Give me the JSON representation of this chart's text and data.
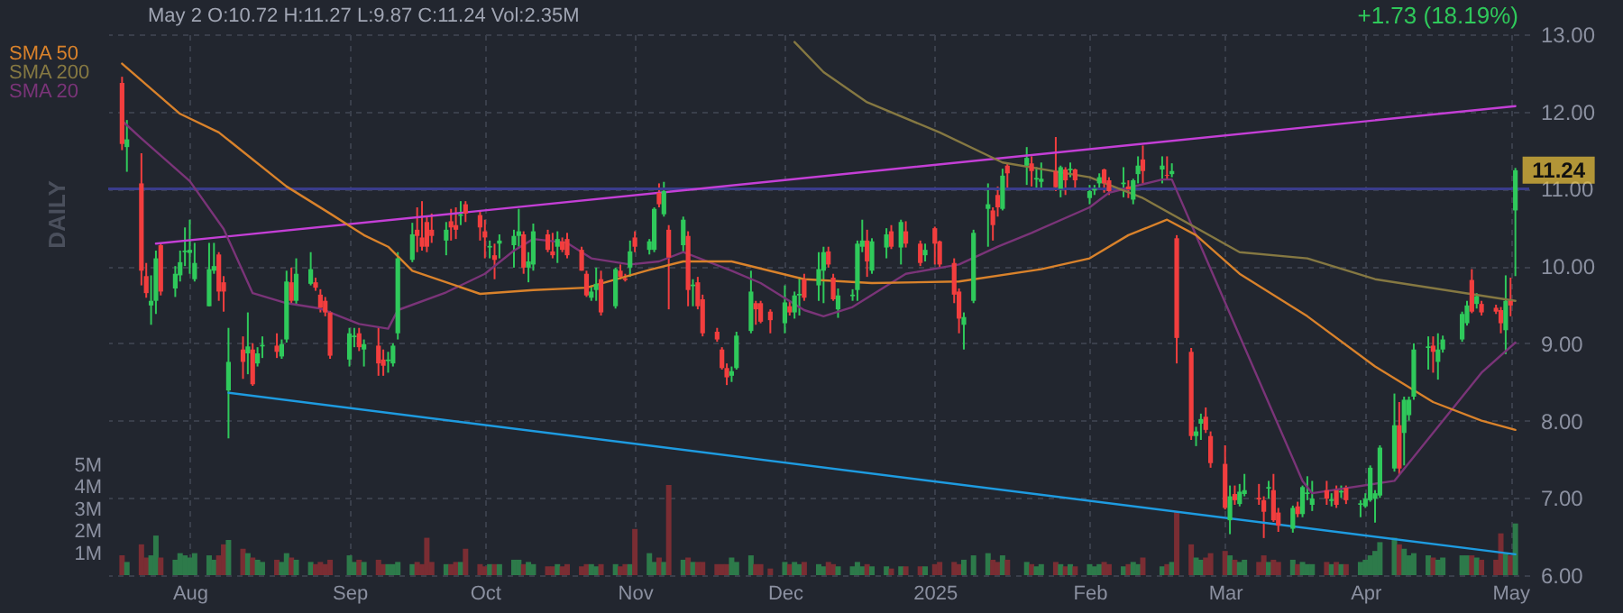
{
  "chart_data": {
    "type": "candlestick",
    "x": [
      "2024-07-18",
      "2024-07-19",
      "2024-07-22",
      "2024-07-23",
      "2024-07-24",
      "2024-07-25",
      "2024-07-26",
      "2024-07-29",
      "2024-07-30",
      "2024-07-31",
      "2024-08-01",
      "2024-08-02",
      "2024-08-05",
      "2024-08-06",
      "2024-08-07",
      "2024-08-08",
      "2024-08-09",
      "2024-08-12",
      "2024-08-13",
      "2024-08-14",
      "2024-08-15",
      "2024-08-16",
      "2024-08-19",
      "2024-08-20",
      "2024-08-21",
      "2024-08-22",
      "2024-08-23",
      "2024-08-26",
      "2024-08-27",
      "2024-08-28",
      "2024-08-29",
      "2024-08-30",
      "2024-09-03",
      "2024-09-04",
      "2024-09-05",
      "2024-09-06",
      "2024-09-09",
      "2024-09-10",
      "2024-09-11",
      "2024-09-12",
      "2024-09-13",
      "2024-09-16",
      "2024-09-17",
      "2024-09-18",
      "2024-09-19",
      "2024-09-20",
      "2024-09-23",
      "2024-09-24",
      "2024-09-25",
      "2024-09-26",
      "2024-09-27",
      "2024-09-30",
      "2024-10-01",
      "2024-10-02",
      "2024-10-03",
      "2024-10-04",
      "2024-10-07",
      "2024-10-08",
      "2024-10-09",
      "2024-10-10",
      "2024-10-11",
      "2024-10-14",
      "2024-10-15",
      "2024-10-16",
      "2024-10-17",
      "2024-10-18",
      "2024-10-21",
      "2024-10-22",
      "2024-10-23",
      "2024-10-24",
      "2024-10-25",
      "2024-10-28",
      "2024-10-29",
      "2024-10-30",
      "2024-10-31",
      "2024-11-01",
      "2024-11-04",
      "2024-11-05",
      "2024-11-06",
      "2024-11-07",
      "2024-11-08",
      "2024-11-11",
      "2024-11-12",
      "2024-11-13",
      "2024-11-14",
      "2024-11-15",
      "2024-11-18",
      "2024-11-19",
      "2024-11-20",
      "2024-11-21",
      "2024-11-22",
      "2024-11-25",
      "2024-11-26",
      "2024-11-27",
      "2024-11-29",
      "2024-12-02",
      "2024-12-03",
      "2024-12-04",
      "2024-12-05",
      "2024-12-06",
      "2024-12-09",
      "2024-12-10",
      "2024-12-11",
      "2024-12-12",
      "2024-12-13",
      "2024-12-16",
      "2024-12-17",
      "2024-12-18",
      "2024-12-19",
      "2024-12-20",
      "2024-12-23",
      "2024-12-24",
      "2024-12-26",
      "2024-12-27",
      "2024-12-30",
      "2024-12-31",
      "2025-01-02",
      "2025-01-03",
      "2025-01-06",
      "2025-01-07",
      "2025-01-08",
      "2025-01-10",
      "2025-01-13",
      "2025-01-14",
      "2025-01-15",
      "2025-01-16",
      "2025-01-17",
      "2025-01-21",
      "2025-01-22",
      "2025-01-23",
      "2025-01-24",
      "2025-01-27",
      "2025-01-28",
      "2025-01-29",
      "2025-01-30",
      "2025-01-31",
      "2025-02-03",
      "2025-02-04",
      "2025-02-05",
      "2025-02-06",
      "2025-02-07",
      "2025-02-10",
      "2025-02-11",
      "2025-02-12",
      "2025-02-13",
      "2025-02-14",
      "2025-02-18",
      "2025-02-19",
      "2025-02-20",
      "2025-02-21",
      "2025-02-24",
      "2025-02-25",
      "2025-02-26",
      "2025-02-27",
      "2025-02-28",
      "2025-03-03",
      "2025-03-04",
      "2025-03-05",
      "2025-03-06",
      "2025-03-07",
      "2025-03-10",
      "2025-03-11",
      "2025-03-12",
      "2025-03-13",
      "2025-03-14",
      "2025-03-17",
      "2025-03-18",
      "2025-03-19",
      "2025-03-20",
      "2025-03-21",
      "2025-03-24",
      "2025-03-25",
      "2025-03-26",
      "2025-03-27",
      "2025-03-28",
      "2025-03-31",
      "2025-04-01",
      "2025-04-02",
      "2025-04-03",
      "2025-04-04",
      "2025-04-07",
      "2025-04-08",
      "2025-04-09",
      "2025-04-10",
      "2025-04-11",
      "2025-04-14",
      "2025-04-15",
      "2025-04-16",
      "2025-04-17",
      "2025-04-21",
      "2025-04-22",
      "2025-04-23",
      "2025-04-24",
      "2025-04-25",
      "2025-04-28",
      "2025-04-29",
      "2025-04-30",
      "2025-05-01",
      "2025-05-02"
    ],
    "ohlc": [
      [
        12.37,
        12.45,
        11.5,
        11.58
      ],
      [
        11.54,
        11.89,
        11.22,
        11.64
      ],
      [
        11.07,
        11.46,
        9.75,
        9.94
      ],
      [
        9.87,
        10.04,
        9.59,
        9.65
      ],
      [
        9.49,
        9.88,
        9.24,
        9.55
      ],
      [
        9.55,
        10.2,
        9.38,
        10.1
      ],
      [
        10.27,
        10.3,
        9.62,
        9.67
      ],
      [
        9.71,
        10.0,
        9.6,
        9.9
      ],
      [
        9.88,
        10.2,
        9.8,
        10.05
      ],
      [
        10.18,
        10.5,
        10.0,
        10.2
      ],
      [
        10.17,
        10.6,
        9.9,
        10.21
      ],
      [
        9.83,
        10.3,
        9.8,
        10.04
      ],
      [
        9.48,
        10.3,
        9.48,
        9.96
      ],
      [
        9.94,
        10.3,
        9.9,
        10.0
      ],
      [
        10.15,
        10.18,
        9.55,
        9.67
      ],
      [
        9.79,
        9.87,
        9.41,
        9.67
      ],
      [
        8.39,
        9.2,
        7.77,
        8.76
      ],
      [
        8.92,
        9.09,
        8.54,
        8.76
      ],
      [
        8.87,
        9.4,
        8.6,
        8.96
      ],
      [
        8.92,
        9.0,
        8.45,
        8.47
      ],
      [
        8.74,
        8.95,
        8.7,
        8.87
      ],
      [
        8.96,
        9.09,
        8.81,
        8.98
      ],
      [
        8.97,
        9.13,
        8.81,
        8.89
      ],
      [
        8.83,
        9.05,
        8.8,
        8.99
      ],
      [
        9.05,
        9.94,
        9.01,
        9.8
      ],
      [
        9.79,
        9.98,
        9.5,
        9.55
      ],
      [
        9.55,
        10.1,
        9.5,
        9.9
      ],
      [
        9.77,
        10.18,
        9.75,
        9.96
      ],
      [
        9.79,
        9.85,
        9.68,
        9.72
      ],
      [
        9.63,
        9.7,
        9.4,
        9.46
      ],
      [
        9.55,
        9.6,
        9.35,
        9.4
      ],
      [
        9.4,
        9.42,
        8.8,
        8.84
      ],
      [
        8.79,
        9.2,
        8.7,
        9.13
      ],
      [
        9.08,
        9.2,
        8.95,
        9.1
      ],
      [
        9.13,
        9.2,
        8.9,
        8.95
      ],
      [
        8.92,
        9.05,
        8.7,
        8.99
      ],
      [
        8.97,
        9.2,
        8.58,
        8.74
      ],
      [
        8.79,
        8.92,
        8.58,
        8.71
      ],
      [
        8.77,
        8.89,
        8.62,
        8.79
      ],
      [
        8.74,
        9.0,
        8.7,
        8.97
      ],
      [
        9.13,
        10.18,
        9.05,
        10.1
      ],
      [
        10.08,
        10.56,
        10.05,
        10.41
      ],
      [
        10.47,
        10.76,
        10.18,
        10.39
      ],
      [
        10.37,
        10.84,
        10.2,
        10.25
      ],
      [
        10.57,
        10.64,
        10.18,
        10.25
      ],
      [
        10.47,
        10.68,
        10.3,
        10.39
      ],
      [
        10.33,
        10.57,
        10.14,
        10.47
      ],
      [
        10.58,
        10.74,
        10.33,
        10.5
      ],
      [
        10.53,
        10.76,
        10.35,
        10.47
      ],
      [
        10.65,
        10.84,
        10.53,
        10.67
      ],
      [
        10.8,
        10.84,
        10.57,
        10.68
      ],
      [
        10.66,
        10.72,
        10.33,
        10.5
      ],
      [
        10.45,
        10.6,
        10.1,
        10.37
      ],
      [
        10.24,
        10.33,
        10.1,
        10.26
      ],
      [
        10.14,
        10.29,
        9.83,
        10.08
      ],
      [
        10.29,
        10.41,
        10.1,
        10.33
      ],
      [
        10.27,
        10.47,
        9.98,
        10.39
      ],
      [
        10.39,
        10.74,
        10.25,
        10.45
      ],
      [
        10.41,
        10.45,
        9.9,
        9.98
      ],
      [
        9.98,
        10.18,
        9.79,
        10.06
      ],
      [
        10.02,
        10.55,
        9.94,
        10.45
      ],
      [
        10.41,
        10.47,
        10.18,
        10.21
      ],
      [
        10.19,
        10.43,
        10.1,
        10.14
      ],
      [
        10.25,
        10.45,
        10.04,
        10.35
      ],
      [
        10.32,
        10.37,
        10.18,
        10.21
      ],
      [
        10.35,
        10.43,
        10.1,
        10.14
      ],
      [
        10.21,
        10.25,
        9.94,
        9.94
      ],
      [
        9.9,
        9.94,
        9.6,
        9.62
      ],
      [
        9.59,
        9.75,
        9.55,
        9.67
      ],
      [
        9.69,
        9.98,
        9.55,
        9.77
      ],
      [
        9.83,
        9.94,
        9.36,
        9.4
      ],
      [
        9.48,
        9.98,
        9.45,
        9.96
      ],
      [
        9.94,
        10.02,
        9.83,
        9.86
      ],
      [
        9.84,
        9.9,
        9.8,
        9.82
      ],
      [
        9.98,
        10.33,
        9.86,
        10.19
      ],
      [
        10.37,
        10.45,
        10.18,
        10.25
      ],
      [
        10.21,
        10.35,
        10.15,
        10.32
      ],
      [
        10.21,
        10.76,
        10.18,
        10.74
      ],
      [
        10.95,
        11.07,
        10.76,
        10.8
      ],
      [
        10.67,
        11.09,
        10.64,
        10.97
      ],
      [
        10.47,
        10.53,
        9.44,
        10.11
      ],
      [
        10.27,
        10.64,
        10.18,
        10.6
      ],
      [
        10.39,
        10.45,
        9.48,
        9.69
      ],
      [
        9.74,
        9.83,
        9.48,
        9.76
      ],
      [
        9.79,
        9.86,
        9.44,
        9.48
      ],
      [
        9.57,
        9.63,
        9.09,
        9.13
      ],
      [
        9.15,
        9.2,
        9.02,
        9.05
      ],
      [
        8.92,
        8.95,
        8.66,
        8.68
      ],
      [
        8.68,
        8.74,
        8.46,
        8.56
      ],
      [
        8.58,
        8.7,
        8.5,
        8.64
      ],
      [
        8.68,
        9.15,
        8.66,
        9.1
      ],
      [
        9.16,
        9.94,
        9.13,
        9.67
      ],
      [
        9.52,
        9.55,
        9.24,
        9.44
      ],
      [
        9.52,
        9.55,
        9.26,
        9.28
      ],
      [
        9.41,
        9.44,
        9.13,
        9.3
      ],
      [
        9.26,
        9.75,
        9.13,
        9.53
      ],
      [
        9.48,
        9.55,
        9.36,
        9.4
      ],
      [
        9.4,
        9.67,
        9.32,
        9.62
      ],
      [
        9.62,
        9.86,
        9.36,
        9.64
      ],
      [
        9.83,
        9.9,
        9.55,
        9.59
      ],
      [
        9.75,
        10.18,
        9.55,
        9.96
      ],
      [
        9.94,
        10.25,
        9.52,
        10.18
      ],
      [
        10.19,
        10.25,
        9.98,
        10.02
      ],
      [
        9.85,
        9.9,
        9.55,
        9.57
      ],
      [
        9.44,
        9.71,
        9.33,
        9.62
      ],
      [
        9.61,
        9.7,
        9.55,
        9.63
      ],
      [
        9.69,
        10.33,
        9.55,
        10.29
      ],
      [
        10.25,
        10.6,
        10.18,
        10.33
      ],
      [
        10.33,
        10.47,
        9.86,
        10.06
      ],
      [
        9.94,
        10.36,
        9.9,
        10.32
      ],
      [
        10.24,
        10.49,
        10.1,
        10.41
      ],
      [
        10.45,
        10.53,
        10.22,
        10.25
      ],
      [
        10.24,
        10.6,
        10.02,
        10.57
      ],
      [
        10.45,
        10.58,
        10.24,
        10.29
      ],
      [
        10.29,
        10.33,
        10.0,
        10.04
      ],
      [
        10.14,
        10.29,
        10.06,
        10.21
      ],
      [
        10.49,
        10.51,
        10.02,
        10.29
      ],
      [
        10.32,
        10.33,
        9.98,
        10.02
      ],
      [
        10.04,
        10.1,
        9.52,
        9.63
      ],
      [
        9.67,
        9.71,
        9.13,
        9.32
      ],
      [
        9.24,
        9.4,
        8.92,
        9.34
      ],
      [
        9.55,
        10.47,
        9.52,
        10.43
      ],
      [
        10.74,
        11.07,
        10.25,
        10.8
      ],
      [
        10.72,
        10.76,
        10.33,
        10.53
      ],
      [
        10.92,
        11.03,
        10.64,
        10.76
      ],
      [
        10.74,
        11.26,
        10.72,
        11.17
      ],
      [
        11.3,
        11.34,
        10.99,
        11.2
      ],
      [
        11.3,
        11.54,
        11.05,
        11.4
      ],
      [
        11.33,
        11.42,
        11.03,
        11.23
      ],
      [
        11.12,
        11.28,
        10.99,
        11.14
      ],
      [
        11.09,
        11.34,
        10.99,
        11.13
      ],
      [
        11.23,
        11.67,
        10.97,
        11.02
      ],
      [
        11.0,
        11.3,
        10.89,
        11.28
      ],
      [
        11.25,
        11.28,
        10.92,
        11.11
      ],
      [
        11.24,
        11.34,
        11.15,
        11.26
      ],
      [
        11.25,
        11.26,
        10.99,
        11.11
      ],
      [
        10.88,
        11.05,
        10.8,
        10.97
      ],
      [
        10.98,
        11.05,
        10.92,
        11.0
      ],
      [
        11.07,
        11.2,
        11.0,
        11.15
      ],
      [
        11.25,
        11.26,
        10.95,
        11.07
      ],
      [
        11.11,
        11.15,
        10.92,
        10.97
      ],
      [
        11.06,
        11.28,
        10.89,
        11.08
      ],
      [
        11.03,
        11.11,
        10.88,
        10.99
      ],
      [
        10.86,
        11.13,
        10.8,
        11.11
      ],
      [
        11.19,
        11.42,
        11.07,
        11.3
      ],
      [
        11.38,
        11.56,
        11.07,
        11.23
      ],
      [
        11.25,
        11.42,
        11.07,
        11.3
      ],
      [
        11.18,
        11.42,
        11.11,
        11.17
      ],
      [
        11.19,
        11.33,
        11.15,
        11.23
      ],
      [
        10.36,
        10.4,
        8.74,
        9.07
      ],
      [
        8.89,
        8.94,
        7.75,
        7.8
      ],
      [
        7.8,
        7.92,
        7.67,
        7.86
      ],
      [
        7.96,
        8.09,
        7.75,
        8.02
      ],
      [
        8.05,
        8.17,
        7.84,
        7.88
      ],
      [
        7.8,
        7.86,
        7.39,
        7.45
      ],
      [
        7.44,
        7.68,
        6.85,
        6.87
      ],
      [
        6.71,
        7.16,
        6.53,
        7.02
      ],
      [
        7.05,
        7.16,
        6.91,
        6.97
      ],
      [
        6.92,
        7.18,
        6.89,
        7.08
      ],
      [
        7.05,
        7.31,
        7.02,
        7.1
      ],
      [
        7.0,
        7.18,
        6.91,
        6.98
      ],
      [
        6.97,
        7.02,
        6.48,
        6.82
      ],
      [
        7.12,
        7.22,
        6.99,
        7.14
      ],
      [
        7.1,
        7.31,
        6.69,
        6.71
      ],
      [
        6.81,
        6.87,
        6.56,
        6.64
      ],
      [
        6.6,
        6.9,
        6.55,
        6.87
      ],
      [
        6.89,
        6.95,
        6.75,
        6.79
      ],
      [
        6.79,
        7.16,
        6.75,
        7.14
      ],
      [
        7.05,
        7.28,
        6.97,
        7.07
      ],
      [
        6.91,
        7.22,
        6.83,
        6.99
      ],
      [
        7.1,
        7.22,
        6.91,
        6.99
      ],
      [
        6.96,
        7.06,
        6.89,
        6.98
      ],
      [
        7.1,
        7.16,
        6.87,
        6.91
      ],
      [
        7.07,
        7.16,
        7.0,
        7.09
      ],
      [
        7.13,
        7.16,
        6.92,
        6.97
      ],
      [
        6.91,
        6.97,
        6.75,
        6.93
      ],
      [
        6.89,
        7.06,
        6.87,
        6.99
      ],
      [
        6.97,
        7.42,
        6.95,
        7.39
      ],
      [
        6.99,
        7.1,
        6.68,
        7.06
      ],
      [
        7.03,
        7.68,
        7.0,
        7.65
      ],
      [
        7.38,
        8.35,
        7.34,
        7.94
      ],
      [
        7.94,
        8.24,
        7.3,
        7.38
      ],
      [
        7.84,
        8.31,
        7.42,
        8.27
      ],
      [
        8.07,
        8.31,
        8.0,
        8.27
      ],
      [
        8.31,
        9.0,
        8.27,
        8.92
      ],
      [
        8.94,
        9.09,
        8.66,
        8.96
      ],
      [
        8.97,
        9.09,
        8.62,
        8.89
      ],
      [
        8.76,
        9.13,
        8.53,
        8.92
      ],
      [
        8.92,
        9.1,
        8.88,
        9.05
      ],
      [
        9.05,
        9.41,
        9.02,
        9.38
      ],
      [
        9.26,
        9.55,
        9.23,
        9.49
      ],
      [
        9.82,
        9.96,
        9.39,
        9.41
      ],
      [
        9.51,
        9.65,
        9.45,
        9.61
      ],
      [
        9.51,
        9.55,
        9.36,
        9.4
      ],
      [
        9.46,
        9.5,
        9.38,
        9.41
      ],
      [
        9.43,
        9.47,
        9.13,
        9.26
      ],
      [
        9.17,
        9.88,
        8.86,
        9.55
      ],
      [
        9.55,
        9.85,
        9.35,
        9.49
      ],
      [
        10.72,
        11.27,
        9.87,
        11.24
      ]
    ],
    "colors": [
      "#f23e3e",
      "#2fc95b",
      "#f23e3e",
      "#f23e3e",
      "#2fc95b",
      "#2fc95b",
      "#f23e3e",
      "#2fc95b",
      "#2fc95b",
      "#2fc95b",
      "#2fc95b",
      "#2fc95b",
      "#2fc95b",
      "#2fc95b",
      "#f23e3e",
      "#f23e3e",
      "#2fc95b",
      "#f23e3e",
      "#2fc95b",
      "#f23e3e",
      "#2fc95b",
      "#2fc95b",
      "#f23e3e",
      "#2fc95b",
      "#2fc95b",
      "#f23e3e",
      "#2fc95b",
      "#2fc95b",
      "#f23e3e",
      "#f23e3e",
      "#f23e3e",
      "#f23e3e",
      "#2fc95b",
      "#2fc95b",
      "#f23e3e",
      "#2fc95b",
      "#f23e3e",
      "#f23e3e",
      "#2fc95b",
      "#2fc95b",
      "#2fc95b",
      "#2fc95b",
      "#f23e3e",
      "#f23e3e",
      "#f23e3e",
      "#f23e3e",
      "#2fc95b",
      "#f23e3e",
      "#f23e3e",
      "#2fc95b",
      "#f23e3e",
      "#f23e3e",
      "#f23e3e",
      "#2fc95b",
      "#f23e3e",
      "#2fc95b",
      "#2fc95b",
      "#2fc95b",
      "#f23e3e",
      "#2fc95b",
      "#2fc95b",
      "#f23e3e",
      "#f23e3e",
      "#2fc95b",
      "#f23e3e",
      "#f23e3e",
      "#f23e3e",
      "#f23e3e",
      "#2fc95b",
      "#2fc95b",
      "#f23e3e",
      "#2fc95b",
      "#f23e3e",
      "#f23e3e",
      "#2fc95b",
      "#f23e3e",
      "#2fc95b",
      "#2fc95b",
      "#f23e3e",
      "#2fc95b",
      "#f23e3e",
      "#2fc95b",
      "#f23e3e",
      "#2fc95b",
      "#f23e3e",
      "#f23e3e",
      "#f23e3e",
      "#f23e3e",
      "#f23e3e",
      "#2fc95b",
      "#2fc95b",
      "#2fc95b",
      "#f23e3e",
      "#f23e3e",
      "#f23e3e",
      "#2fc95b",
      "#f23e3e",
      "#2fc95b",
      "#2fc95b",
      "#f23e3e",
      "#2fc95b",
      "#2fc95b",
      "#f23e3e",
      "#f23e3e",
      "#2fc95b",
      "#2fc95b",
      "#2fc95b",
      "#2fc95b",
      "#f23e3e",
      "#2fc95b",
      "#2fc95b",
      "#f23e3e",
      "#2fc95b",
      "#f23e3e",
      "#f23e3e",
      "#2fc95b",
      "#f23e3e",
      "#f23e3e",
      "#f23e3e",
      "#f23e3e",
      "#2fc95b",
      "#2fc95b",
      "#2fc95b",
      "#f23e3e",
      "#f23e3e",
      "#2fc95b",
      "#f23e3e",
      "#2fc95b",
      "#f23e3e",
      "#2fc95b",
      "#2fc95b",
      "#f23e3e",
      "#2fc95b",
      "#f23e3e",
      "#2fc95b",
      "#f23e3e",
      "#2fc95b",
      "#2fc95b",
      "#2fc95b",
      "#f23e3e",
      "#f23e3e",
      "#2fc95b",
      "#f23e3e",
      "#2fc95b",
      "#2fc95b",
      "#f23e3e",
      "#2fc95b",
      "#f23e3e",
      "#2fc95b",
      "#f23e3e",
      "#f23e3e",
      "#2fc95b",
      "#2fc95b",
      "#f23e3e",
      "#f23e3e",
      "#f23e3e",
      "#2fc95b",
      "#f23e3e",
      "#2fc95b",
      "#2fc95b",
      "#f23e3e",
      "#f23e3e",
      "#2fc95b",
      "#f23e3e",
      "#f23e3e",
      "#2fc95b",
      "#f23e3e",
      "#2fc95b",
      "#2fc95b",
      "#2fc95b",
      "#f23e3e",
      "#2fc95b",
      "#f23e3e",
      "#2fc95b",
      "#f23e3e",
      "#2fc95b",
      "#2fc95b",
      "#2fc95b",
      "#2fc95b",
      "#2fc95b",
      "#2fc95b",
      "#f23e3e",
      "#2fc95b",
      "#2fc95b",
      "#2fc95b",
      "#2fc95b",
      "#f23e3e",
      "#2fc95b",
      "#2fc95b",
      "#2fc95b",
      "#2fc95b",
      "#f23e3e",
      "#2fc95b",
      "#f23e3e",
      "#f23e3e",
      "#f23e3e",
      "#2fc95b",
      "#f23e3e",
      "#2fc95b"
    ],
    "series": [
      {
        "type": "bar",
        "axis": "y2",
        "values": [
          0.9,
          0.6,
          1.4,
          0.8,
          0.9,
          1.8,
          0.8,
          0.7,
          1.0,
          0.9,
          0.8,
          1.0,
          0.9,
          0.7,
          0.9,
          1.4,
          1.6,
          1.2,
          1.0,
          0.8,
          0.7,
          0.6,
          0.7,
          0.6,
          1.0,
          0.8,
          0.7,
          0.6,
          0.5,
          0.6,
          0.5,
          0.7,
          0.9,
          0.6,
          0.7,
          0.6,
          0.7,
          0.5,
          0.5,
          0.5,
          0.6,
          0.5,
          0.6,
          0.5,
          1.7,
          0.6,
          0.5,
          0.5,
          0.6,
          0.6,
          1.2,
          0.5,
          0.4,
          0.5,
          0.5,
          0.5,
          0.7,
          0.7,
          0.5,
          0.6,
          0.5,
          0.4,
          0.4,
          0.5,
          0.4,
          0.5,
          0.4,
          0.5,
          0.5,
          0.4,
          0.5,
          0.5,
          0.4,
          0.5,
          0.5,
          2.1,
          1.0,
          0.6,
          0.8,
          0.6,
          4.1,
          0.7,
          0.8,
          0.6,
          0.6,
          0.6,
          0.5,
          0.5,
          0.5,
          0.8,
          0.6,
          0.9,
          0.5,
          0.5,
          0.3,
          0.6,
          0.5,
          0.6,
          0.5,
          0.6,
          0.5,
          0.4,
          0.6,
          0.5,
          0.4,
          0.4,
          0.6,
          0.4,
          0.5,
          0.4,
          0.4,
          0.3,
          0.4,
          0.4,
          0.4,
          0.4,
          0.5,
          0.6,
          0.6,
          0.5,
          0.7,
          0.9,
          1.0,
          0.7,
          0.6,
          0.9,
          0.7,
          0.6,
          0.5,
          0.4,
          0.5,
          0.6,
          0.5,
          0.4,
          0.5,
          0.4,
          0.5,
          0.4,
          0.5,
          0.6,
          0.5,
          0.4,
          0.5,
          0.6,
          0.5,
          0.8,
          0.4,
          0.5,
          0.6,
          2.9,
          1.4,
          0.8,
          0.7,
          0.8,
          1.0,
          1.1,
          0.9,
          0.7,
          0.6,
          0.7,
          0.6,
          0.9,
          0.6,
          0.7,
          0.6,
          0.7,
          0.5,
          0.6,
          0.5,
          0.5,
          0.6,
          0.5,
          0.6,
          0.5,
          0.5,
          0.6,
          0.7,
          0.9,
          1.1,
          1.5,
          1.7,
          1.4,
          1.2,
          0.9,
          1.0,
          0.9,
          0.8,
          0.7,
          0.8,
          0.9,
          0.9,
          0.9,
          0.8,
          0.7,
          0.7,
          1.9,
          1.0,
          0.9,
          2.35
        ],
        "colors": [
          "#7a2d33",
          "#2d7a4a",
          "#7a2d33",
          "#7a2d33",
          "#2d7a4a",
          "#2d7a4a",
          "#7a2d33",
          "#2d7a4a",
          "#2d7a4a",
          "#2d7a4a",
          "#2d7a4a",
          "#2d7a4a",
          "#2d7a4a",
          "#2d7a4a",
          "#7a2d33",
          "#7a2d33",
          "#2d7a4a",
          "#7a2d33",
          "#2d7a4a",
          "#7a2d33",
          "#2d7a4a",
          "#2d7a4a",
          "#7a2d33",
          "#2d7a4a",
          "#2d7a4a",
          "#7a2d33",
          "#2d7a4a",
          "#2d7a4a",
          "#7a2d33",
          "#7a2d33",
          "#7a2d33",
          "#7a2d33",
          "#2d7a4a",
          "#2d7a4a",
          "#7a2d33",
          "#2d7a4a",
          "#7a2d33",
          "#7a2d33",
          "#2d7a4a",
          "#2d7a4a",
          "#2d7a4a",
          "#2d7a4a",
          "#7a2d33",
          "#7a2d33",
          "#7a2d33",
          "#7a2d33",
          "#2d7a4a",
          "#7a2d33",
          "#7a2d33",
          "#2d7a4a",
          "#7a2d33",
          "#7a2d33",
          "#7a2d33",
          "#2d7a4a",
          "#7a2d33",
          "#2d7a4a",
          "#2d7a4a",
          "#2d7a4a",
          "#7a2d33",
          "#2d7a4a",
          "#2d7a4a",
          "#7a2d33",
          "#7a2d33",
          "#2d7a4a",
          "#7a2d33",
          "#7a2d33",
          "#7a2d33",
          "#7a2d33",
          "#2d7a4a",
          "#2d7a4a",
          "#7a2d33",
          "#2d7a4a",
          "#7a2d33",
          "#7a2d33",
          "#2d7a4a",
          "#7a2d33",
          "#2d7a4a",
          "#2d7a4a",
          "#7a2d33",
          "#2d7a4a",
          "#7a2d33",
          "#2d7a4a",
          "#7a2d33",
          "#2d7a4a",
          "#7a2d33",
          "#7a2d33",
          "#7a2d33",
          "#7a2d33",
          "#7a2d33",
          "#2d7a4a",
          "#2d7a4a",
          "#2d7a4a",
          "#7a2d33",
          "#7a2d33",
          "#7a2d33",
          "#2d7a4a",
          "#7a2d33",
          "#2d7a4a",
          "#2d7a4a",
          "#7a2d33",
          "#2d7a4a",
          "#2d7a4a",
          "#7a2d33",
          "#7a2d33",
          "#2d7a4a",
          "#2d7a4a",
          "#2d7a4a",
          "#2d7a4a",
          "#7a2d33",
          "#2d7a4a",
          "#2d7a4a",
          "#7a2d33",
          "#2d7a4a",
          "#7a2d33",
          "#7a2d33",
          "#2d7a4a",
          "#7a2d33",
          "#7a2d33",
          "#7a2d33",
          "#7a2d33",
          "#2d7a4a",
          "#2d7a4a",
          "#2d7a4a",
          "#7a2d33",
          "#7a2d33",
          "#2d7a4a",
          "#7a2d33",
          "#2d7a4a",
          "#7a2d33",
          "#2d7a4a",
          "#2d7a4a",
          "#7a2d33",
          "#2d7a4a",
          "#7a2d33",
          "#2d7a4a",
          "#7a2d33",
          "#2d7a4a",
          "#2d7a4a",
          "#2d7a4a",
          "#7a2d33",
          "#7a2d33",
          "#2d7a4a",
          "#7a2d33",
          "#2d7a4a",
          "#2d7a4a",
          "#7a2d33",
          "#2d7a4a",
          "#7a2d33",
          "#2d7a4a",
          "#7a2d33",
          "#7a2d33",
          "#2d7a4a",
          "#2d7a4a",
          "#7a2d33",
          "#7a2d33",
          "#7a2d33",
          "#2d7a4a",
          "#7a2d33",
          "#2d7a4a",
          "#2d7a4a",
          "#7a2d33",
          "#7a2d33",
          "#2d7a4a",
          "#7a2d33",
          "#7a2d33",
          "#2d7a4a",
          "#7a2d33",
          "#2d7a4a",
          "#2d7a4a",
          "#2d7a4a",
          "#7a2d33",
          "#2d7a4a",
          "#7a2d33",
          "#2d7a4a",
          "#7a2d33",
          "#2d7a4a",
          "#2d7a4a",
          "#2d7a4a",
          "#2d7a4a",
          "#2d7a4a",
          "#2d7a4a",
          "#7a2d33",
          "#2d7a4a",
          "#2d7a4a",
          "#2d7a4a",
          "#2d7a4a",
          "#7a2d33",
          "#2d7a4a",
          "#2d7a4a",
          "#2d7a4a",
          "#2d7a4a",
          "#7a2d33",
          "#2d7a4a",
          "#7a2d33",
          "#7a2d33",
          "#7a2d33",
          "#2d7a4a",
          "#7a2d33",
          "#2d7a4a"
        ]
      },
      {
        "type": "line",
        "name": "SMA 50",
        "color": "#d9822b",
        "x": [
          "2024-07-18",
          "2024-07-30",
          "2024-08-07",
          "2024-08-21",
          "2024-08-30",
          "2024-09-06",
          "2024-09-11",
          "2024-09-16",
          "2024-09-30",
          "2024-10-11",
          "2024-10-22",
          "2024-11-04",
          "2024-11-11",
          "2024-11-21",
          "2024-12-06",
          "2024-12-20",
          "2025-01-07",
          "2025-01-24",
          "2025-02-03",
          "2025-02-11",
          "2025-02-19",
          "2025-02-25",
          "2025-03-06",
          "2025-03-20",
          "2025-04-03",
          "2025-04-15",
          "2025-04-25",
          "2025-05-02"
        ],
        "values": [
          12.62,
          11.97,
          11.73,
          11.03,
          10.68,
          10.4,
          10.25,
          9.94,
          9.64,
          9.69,
          9.72,
          9.95,
          10.06,
          10.06,
          9.83,
          9.78,
          9.8,
          9.96,
          10.1,
          10.4,
          10.6,
          10.4,
          9.9,
          9.35,
          8.7,
          8.24,
          8.0,
          7.88
        ]
      },
      {
        "type": "line",
        "name": "SMA 200",
        "color": "#857842",
        "x": [
          "2024-12-04",
          "2024-12-10",
          "2024-12-19",
          "2025-01-03",
          "2025-01-16",
          "2025-02-03",
          "2025-02-14",
          "2025-03-06",
          "2025-03-20",
          "2025-04-03",
          "2025-05-02"
        ],
        "values": [
          12.9,
          12.51,
          12.12,
          11.73,
          11.34,
          11.15,
          10.88,
          10.18,
          10.1,
          9.83,
          9.55
        ]
      },
      {
        "type": "line",
        "name": "SMA 20",
        "color": "#7a3478",
        "x": [
          "2024-07-18",
          "2024-07-22",
          "2024-08-01",
          "2024-08-08",
          "2024-08-14",
          "2024-08-21",
          "2024-08-28",
          "2024-09-05",
          "2024-09-11",
          "2024-09-13",
          "2024-09-23",
          "2024-10-01",
          "2024-10-07",
          "2024-10-11",
          "2024-10-18",
          "2024-10-23",
          "2024-10-31",
          "2024-11-06",
          "2024-11-11",
          "2024-11-21",
          "2024-11-27",
          "2024-12-06",
          "2024-12-10",
          "2024-12-16",
          "2024-12-27",
          "2025-01-07",
          "2025-01-15",
          "2025-01-22",
          "2025-02-03",
          "2025-02-07",
          "2025-02-18",
          "2025-02-20",
          "2025-03-05",
          "2025-03-19",
          "2025-03-21",
          "2025-04-07",
          "2025-04-16",
          "2025-04-25",
          "2025-05-02"
        ],
        "values": [
          11.88,
          11.65,
          11.1,
          10.48,
          9.65,
          9.52,
          9.45,
          9.25,
          9.19,
          9.43,
          9.66,
          9.9,
          10.2,
          10.35,
          10.3,
          10.1,
          10.02,
          10.06,
          10.18,
          9.94,
          9.78,
          9.43,
          9.35,
          9.47,
          9.9,
          10.02,
          10.25,
          10.43,
          10.76,
          10.95,
          11.12,
          11.12,
          9.24,
          7.22,
          7.06,
          7.22,
          7.92,
          8.62,
          9.01
        ]
      },
      {
        "type": "line",
        "color": "#c43fd6",
        "x": [
          "2024-07-25",
          "2025-05-02"
        ],
        "values": [
          10.29,
          12.07
        ]
      },
      {
        "type": "line",
        "color": "#1e9be0",
        "x": [
          "2024-08-09",
          "2025-05-02"
        ],
        "values": [
          8.36,
          6.27
        ]
      }
    ],
    "xlim": [
      "2024-07-17",
      "2025-05-03"
    ],
    "xticks": [
      {
        "value": "2024-08-01",
        "label": "Aug"
      },
      {
        "value": "2024-09-03",
        "label": "Sep"
      },
      {
        "value": "2024-10-01",
        "label": "Oct"
      },
      {
        "value": "2024-11-01",
        "label": "Nov"
      },
      {
        "value": "2024-12-02",
        "label": "Dec"
      },
      {
        "value": "2025-01-02",
        "label": "2025"
      },
      {
        "value": "2025-02-03",
        "label": "Feb"
      },
      {
        "value": "2025-03-03",
        "label": "Mar"
      },
      {
        "value": "2025-04-01",
        "label": "Apr"
      },
      {
        "value": "2025-05-01",
        "label": "May"
      }
    ],
    "ylim": [
      6,
      13
    ],
    "yticks": [
      {
        "value": 6,
        "label": "6.00"
      },
      {
        "value": 7,
        "label": "7.00"
      },
      {
        "value": 8,
        "label": "8.00"
      },
      {
        "value": 9,
        "label": "9.00"
      },
      {
        "value": 10,
        "label": "10.00"
      },
      {
        "value": 11,
        "label": "11.00"
      },
      {
        "value": 12,
        "label": "12.00"
      },
      {
        "value": 13,
        "label": "13.00"
      }
    ],
    "y2lim": [
      0,
      24.6
    ],
    "y2ticks": [
      {
        "value": 1,
        "label": "1M"
      },
      {
        "value": 2,
        "label": "2M"
      },
      {
        "value": 3,
        "label": "3M"
      },
      {
        "value": 4,
        "label": "4M"
      },
      {
        "value": 5,
        "label": "5M"
      }
    ],
    "ref_lines": [
      {
        "axis": "y",
        "value": 11,
        "color": "#3a3c8c"
      }
    ],
    "annotations": [
      "May 2  O:10.72  H:11.27  L:9.87  C:11.24  Vol:2.35M",
      "+1.73 (18.19%)",
      "DAILY",
      {
        "text": "11.24",
        "x": "2025-05-02",
        "y": 11.24
      }
    ],
    "legend": "top left",
    "grid": true,
    "line_style": "solid"
  }
}
